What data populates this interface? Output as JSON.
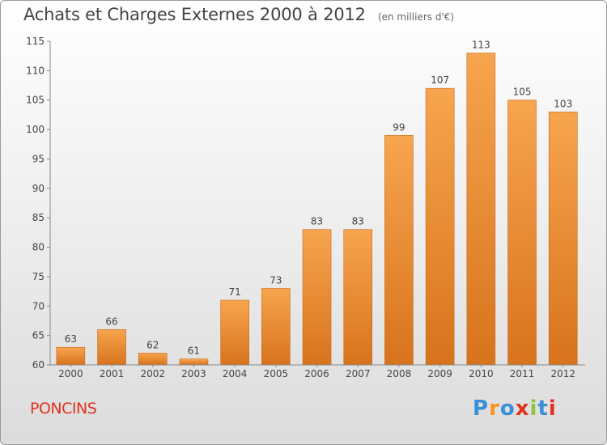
{
  "header": {
    "title": "Achats et Charges Externes 2000 à 2012",
    "subtitle": "(en milliers d'€)"
  },
  "footer": {
    "commune": "PONCINS",
    "logo_text": "Proxiti",
    "logo_colors": [
      "#3a8fd6",
      "#f7931e",
      "#3a8fd6",
      "#e2321f",
      "#8cc63f",
      "#3a8fd6",
      "#e2321f"
    ]
  },
  "chart_data": {
    "type": "bar",
    "categories": [
      "2000",
      "2001",
      "2002",
      "2003",
      "2004",
      "2005",
      "2006",
      "2007",
      "2008",
      "2009",
      "2010",
      "2011",
      "2012"
    ],
    "values": [
      63,
      66,
      62,
      61,
      71,
      73,
      83,
      83,
      99,
      107,
      113,
      105,
      103
    ],
    "ylim": [
      60,
      115
    ],
    "yticks": [
      60,
      65,
      70,
      75,
      80,
      85,
      90,
      95,
      100,
      105,
      110,
      115
    ],
    "grid": false,
    "colors": {
      "bar_top": "#f7a54e",
      "bar_bottom": "#d8731d",
      "bar_edge": "#c8681a",
      "axis": "#888888",
      "text": "#444444"
    }
  }
}
